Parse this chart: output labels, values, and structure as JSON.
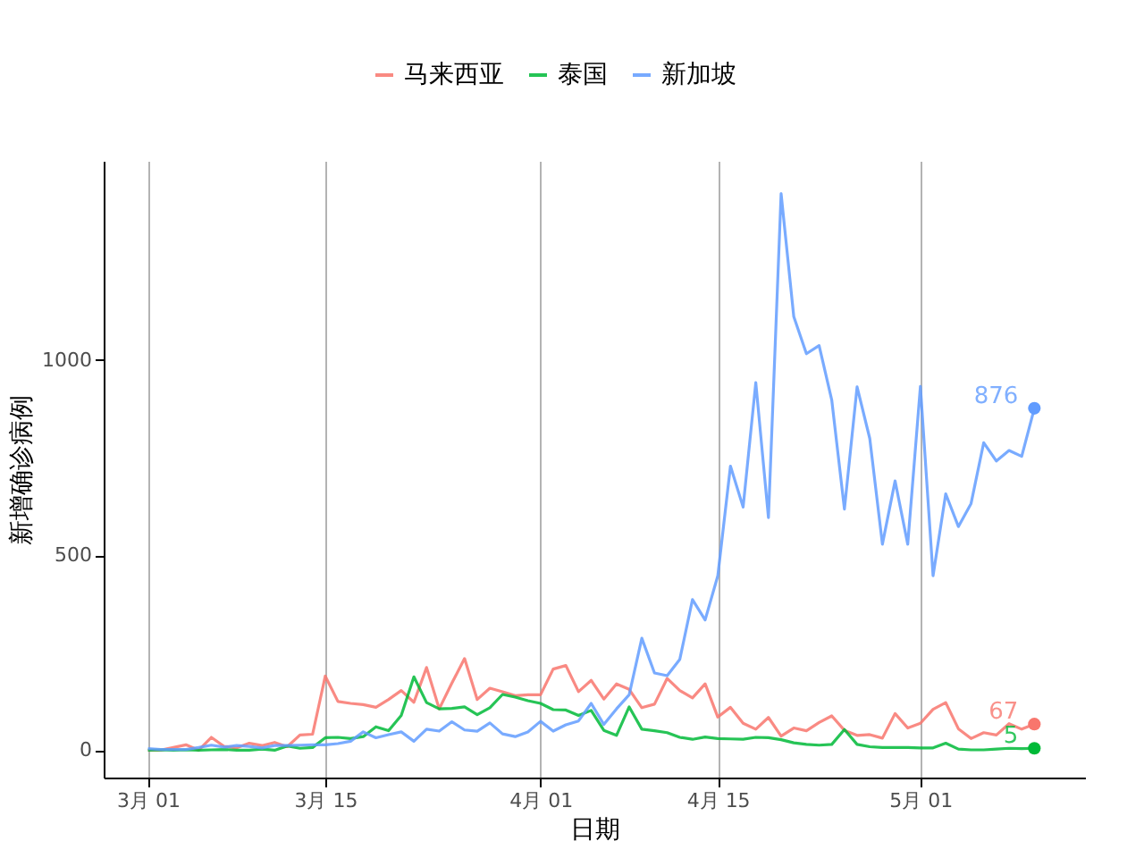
{
  "chart_data": {
    "type": "line",
    "xlabel": "日期",
    "ylabel": "新增确诊病例",
    "x": [
      "--03-01",
      "--03-02",
      "--03-03",
      "--03-04",
      "--03-05",
      "--03-06",
      "--03-07",
      "--03-08",
      "--03-09",
      "--03-10",
      "--03-11",
      "--03-12",
      "--03-13",
      "--03-14",
      "--03-15",
      "--03-16",
      "--03-17",
      "--03-18",
      "--03-19",
      "--03-20",
      "--03-21",
      "--03-22",
      "--03-23",
      "--03-24",
      "--03-25",
      "--03-26",
      "--03-27",
      "--03-28",
      "--03-29",
      "--03-30",
      "--03-31",
      "--04-01",
      "--04-02",
      "--04-03",
      "--04-04",
      "--04-05",
      "--04-06",
      "--04-07",
      "--04-08",
      "--04-09",
      "--04-10",
      "--04-11",
      "--04-12",
      "--04-13",
      "--04-14",
      "--04-15",
      "--04-16",
      "--04-17",
      "--04-18",
      "--04-19",
      "--04-20",
      "--04-21",
      "--04-22",
      "--04-23",
      "--04-24",
      "--04-25",
      "--04-26",
      "--04-27",
      "--04-28",
      "--04-29",
      "--04-30",
      "--05-01",
      "--05-02",
      "--05-03",
      "--05-04",
      "--05-05",
      "--05-06",
      "--05-07",
      "--05-08",
      "--05-09",
      "--05-10"
    ],
    "series": [
      {
        "name": "马来西亚",
        "color": "#f8766d",
        "values": [
          0,
          0,
          7,
          14,
          0,
          33,
          10,
          6,
          18,
          12,
          20,
          9,
          39,
          41,
          190,
          125,
          120,
          117,
          110,
          130,
          153,
          123,
          212,
          106,
          172,
          235,
          130,
          159,
          150,
          140,
          142,
          142,
          208,
          217,
          150,
          179,
          131,
          170,
          156,
          109,
          118,
          184,
          153,
          134,
          170,
          85,
          110,
          69,
          54,
          84,
          36,
          57,
          50,
          71,
          88,
          51,
          38,
          40,
          31,
          94,
          57,
          69,
          105,
          122,
          55,
          30,
          45,
          39,
          68,
          54,
          67
        ],
        "value_labels": [
          null,
          null,
          null,
          null,
          null,
          null,
          null,
          null,
          null,
          null,
          null,
          null,
          null,
          null,
          null,
          null,
          null,
          null,
          null,
          null,
          null,
          null,
          null,
          null,
          null,
          null,
          null,
          null,
          null,
          null,
          null,
          null,
          null,
          null,
          null,
          null,
          null,
          null,
          null,
          null,
          null,
          null,
          null,
          null,
          null,
          null,
          null,
          null,
          null,
          null,
          null,
          null,
          null,
          null,
          null,
          null,
          null,
          null,
          null,
          null,
          null,
          null,
          null,
          null,
          null,
          null,
          null,
          null,
          null,
          null,
          "67"
        ]
      },
      {
        "name": "泰国",
        "color": "#00ba38",
        "values": [
          0,
          1,
          0,
          1,
          0,
          1,
          2,
          0,
          0,
          3,
          0,
          11,
          5,
          7,
          32,
          33,
          30,
          35,
          60,
          50,
          89,
          188,
          122,
          106,
          107,
          111,
          91,
          109,
          143,
          136,
          127,
          120,
          104,
          103,
          89,
          102,
          51,
          38,
          111,
          54,
          50,
          45,
          33,
          28,
          34,
          30,
          29,
          28,
          33,
          32,
          27,
          19,
          15,
          13,
          15,
          53,
          15,
          9,
          7,
          7,
          7,
          6,
          6,
          18,
          3,
          1,
          1,
          3,
          5,
          4,
          5
        ],
        "value_labels": [
          null,
          null,
          null,
          null,
          null,
          null,
          null,
          null,
          null,
          null,
          null,
          null,
          null,
          null,
          null,
          null,
          null,
          null,
          null,
          null,
          null,
          null,
          null,
          null,
          null,
          null,
          null,
          null,
          null,
          null,
          null,
          null,
          null,
          null,
          null,
          null,
          null,
          null,
          null,
          null,
          null,
          null,
          null,
          null,
          null,
          null,
          null,
          null,
          null,
          null,
          null,
          null,
          null,
          null,
          null,
          null,
          null,
          null,
          null,
          null,
          null,
          null,
          null,
          null,
          null,
          null,
          null,
          null,
          null,
          null,
          "5"
        ]
      },
      {
        "name": "新加坡",
        "color": "#619cff",
        "values": [
          4,
          2,
          2,
          2,
          7,
          13,
          8,
          12,
          10,
          6,
          12,
          12,
          13,
          14,
          14,
          17,
          23,
          47,
          32,
          40,
          47,
          23,
          54,
          49,
          73,
          52,
          49,
          70,
          42,
          35,
          47,
          74,
          49,
          65,
          75,
          120,
          66,
          106,
          142,
          287,
          198,
          191,
          233,
          386,
          334,
          447,
          728,
          623,
          942,
          596,
          1426,
          1111,
          1016,
          1037,
          897,
          618,
          931,
          799,
          528,
          690,
          528,
          932,
          447,
          657,
          573,
          632,
          788,
          741,
          768,
          753,
          876
        ],
        "value_labels": [
          null,
          null,
          null,
          null,
          null,
          null,
          null,
          null,
          null,
          null,
          null,
          null,
          null,
          null,
          null,
          null,
          null,
          null,
          null,
          null,
          null,
          null,
          null,
          null,
          null,
          null,
          null,
          null,
          null,
          null,
          null,
          null,
          null,
          null,
          null,
          null,
          null,
          null,
          null,
          null,
          null,
          null,
          null,
          null,
          null,
          null,
          null,
          null,
          null,
          null,
          null,
          null,
          null,
          null,
          null,
          null,
          null,
          null,
          null,
          null,
          null,
          null,
          null,
          null,
          null,
          null,
          null,
          null,
          null,
          null,
          "876"
        ]
      }
    ],
    "xlim": [
      "--02-25T12:00",
      "--05-14"
    ],
    "xticks": [
      {
        "value": "--03-01",
        "label": "3月 01"
      },
      {
        "value": "--03-15",
        "label": "3月 15"
      },
      {
        "value": "--04-01",
        "label": "4月 01"
      },
      {
        "value": "--04-15",
        "label": "4月 15"
      },
      {
        "value": "--05-01",
        "label": "5月 01"
      }
    ],
    "ylim": [
      -70,
      1510
    ],
    "yticks": [
      0,
      500,
      1000
    ],
    "grid": "x",
    "legend": "top"
  }
}
